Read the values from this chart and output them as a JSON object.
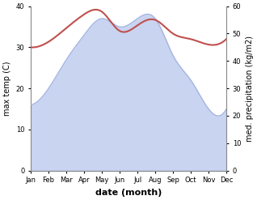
{
  "months": [
    "Jan",
    "Feb",
    "Mar",
    "Apr",
    "May",
    "Jun",
    "Jul",
    "Aug",
    "Sep",
    "Oct",
    "Nov",
    "Dec"
  ],
  "max_temp": [
    16,
    20,
    27,
    33,
    37,
    35,
    37,
    37,
    28,
    22,
    15,
    15
  ],
  "precipitation": [
    45,
    47,
    52,
    57,
    58,
    51,
    53,
    55,
    50,
    48,
    46,
    48
  ],
  "temp_fill_color": "#c8d4f0",
  "temp_line_color": "#a0b0e0",
  "precip_color": "#c0504d",
  "xlabel": "date (month)",
  "ylabel_left": "max temp (C)",
  "ylabel_right": "med. precipitation (kg/m2)",
  "ylim_left": [
    0,
    40
  ],
  "ylim_right": [
    0,
    60
  ],
  "yticks_left": [
    0,
    10,
    20,
    30,
    40
  ],
  "yticks_right": [
    0,
    10,
    20,
    30,
    40,
    50,
    60
  ]
}
